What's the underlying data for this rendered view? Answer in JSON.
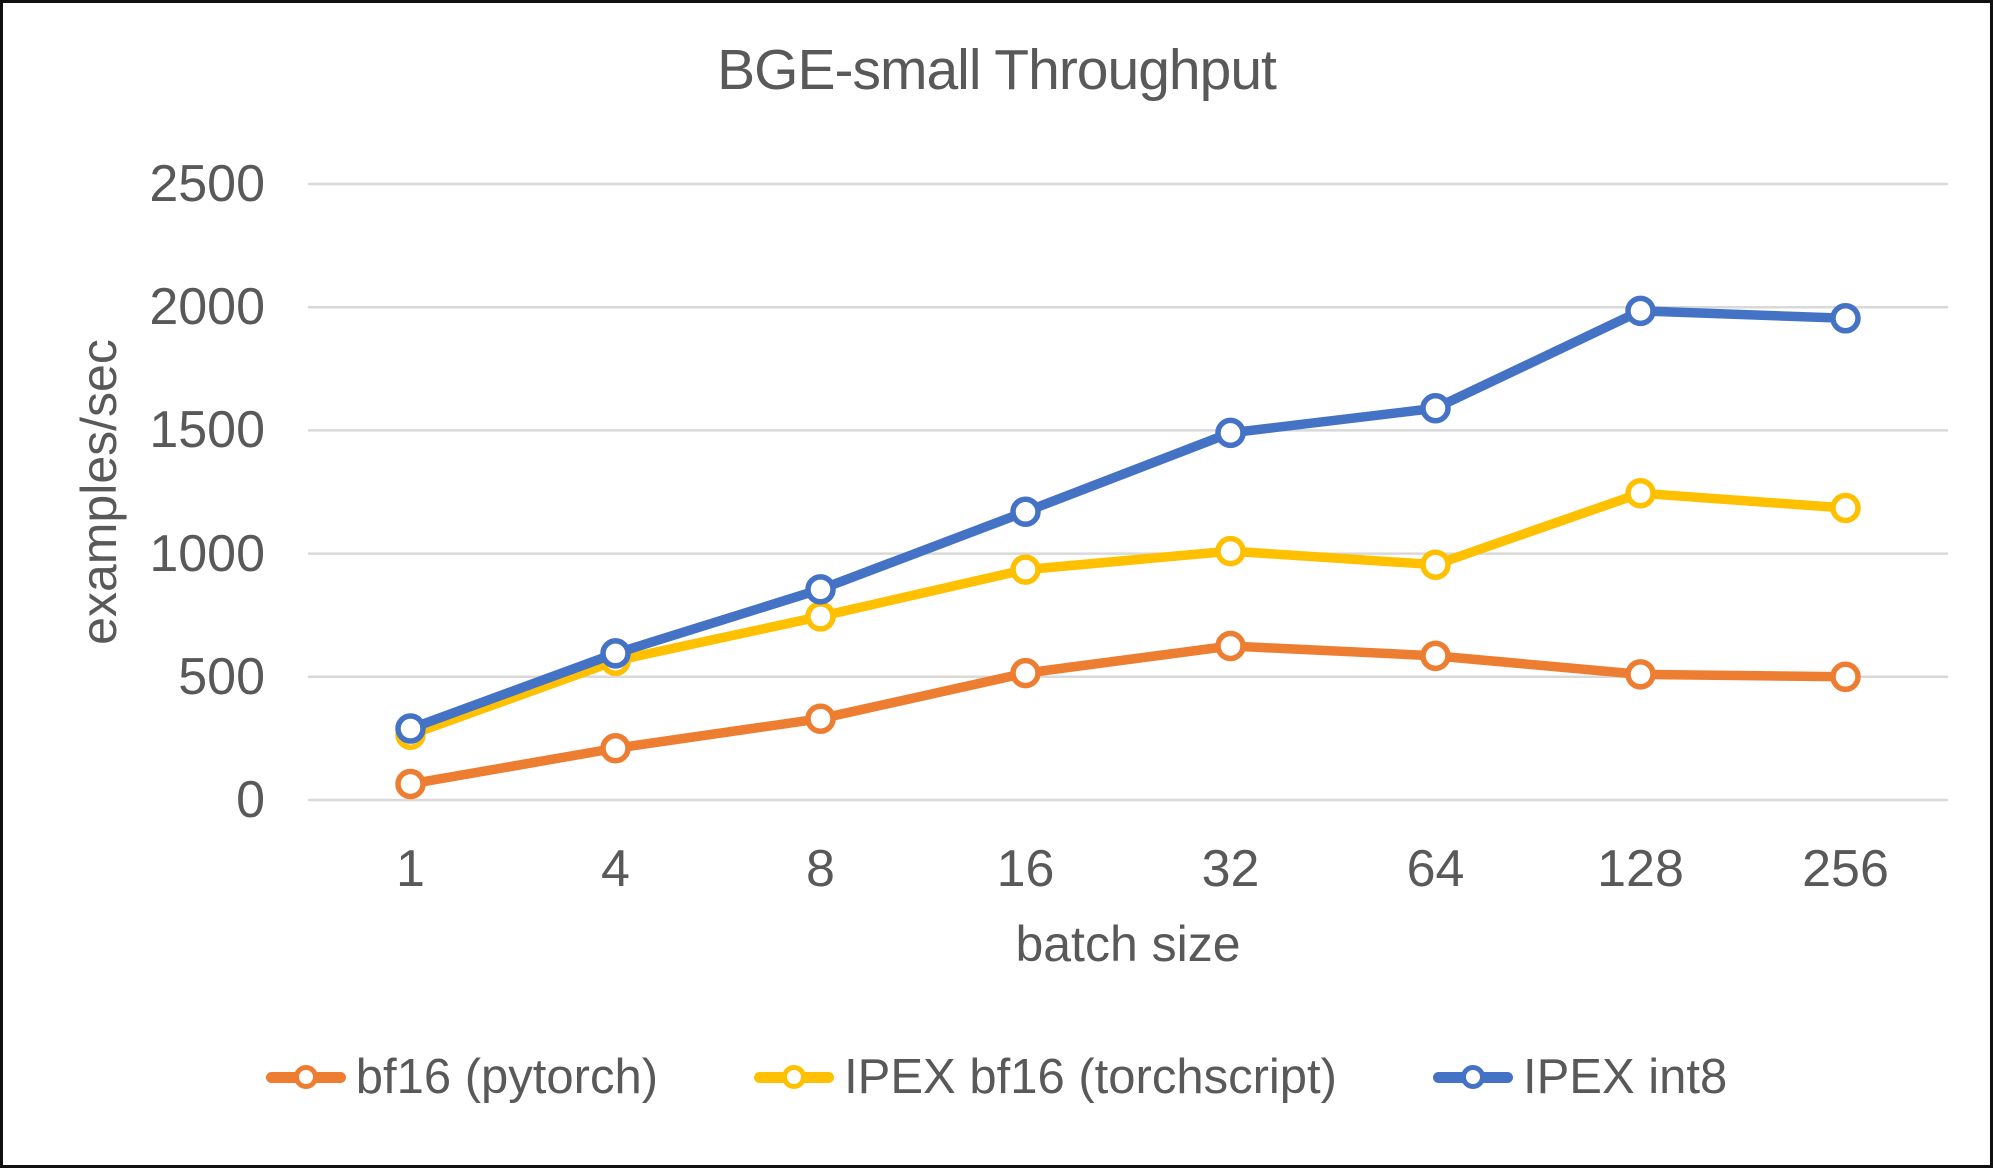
{
  "title": "BGE-small Throughput",
  "colors": {
    "text": "#595959",
    "gridline": "#D9D9D9",
    "background": "#FFFFFF",
    "border": "#111111",
    "marker_fill": "#FFFFFF"
  },
  "chart_data": {
    "type": "line",
    "title": "BGE-small Throughput",
    "xlabel": "batch size",
    "ylabel": "examples/sec",
    "ylim": [
      0,
      2500
    ],
    "y_ticks": [
      0,
      500,
      1000,
      1500,
      2000,
      2500
    ],
    "grid": true,
    "legend_position": "bottom",
    "categories": [
      "1",
      "4",
      "8",
      "16",
      "32",
      "64",
      "128",
      "256"
    ],
    "series": [
      {
        "name": "bf16 (pytorch)",
        "color": "#ED7D31",
        "values": [
          65,
          210,
          330,
          515,
          625,
          585,
          510,
          500
        ]
      },
      {
        "name": "IPEX bf16 (torchscript)",
        "color": "#FFC000",
        "values": [
          265,
          565,
          745,
          935,
          1010,
          955,
          1245,
          1185
        ]
      },
      {
        "name": "IPEX int8",
        "color": "#4472C4",
        "values": [
          290,
          595,
          855,
          1170,
          1490,
          1590,
          1985,
          1955
        ]
      }
    ]
  }
}
